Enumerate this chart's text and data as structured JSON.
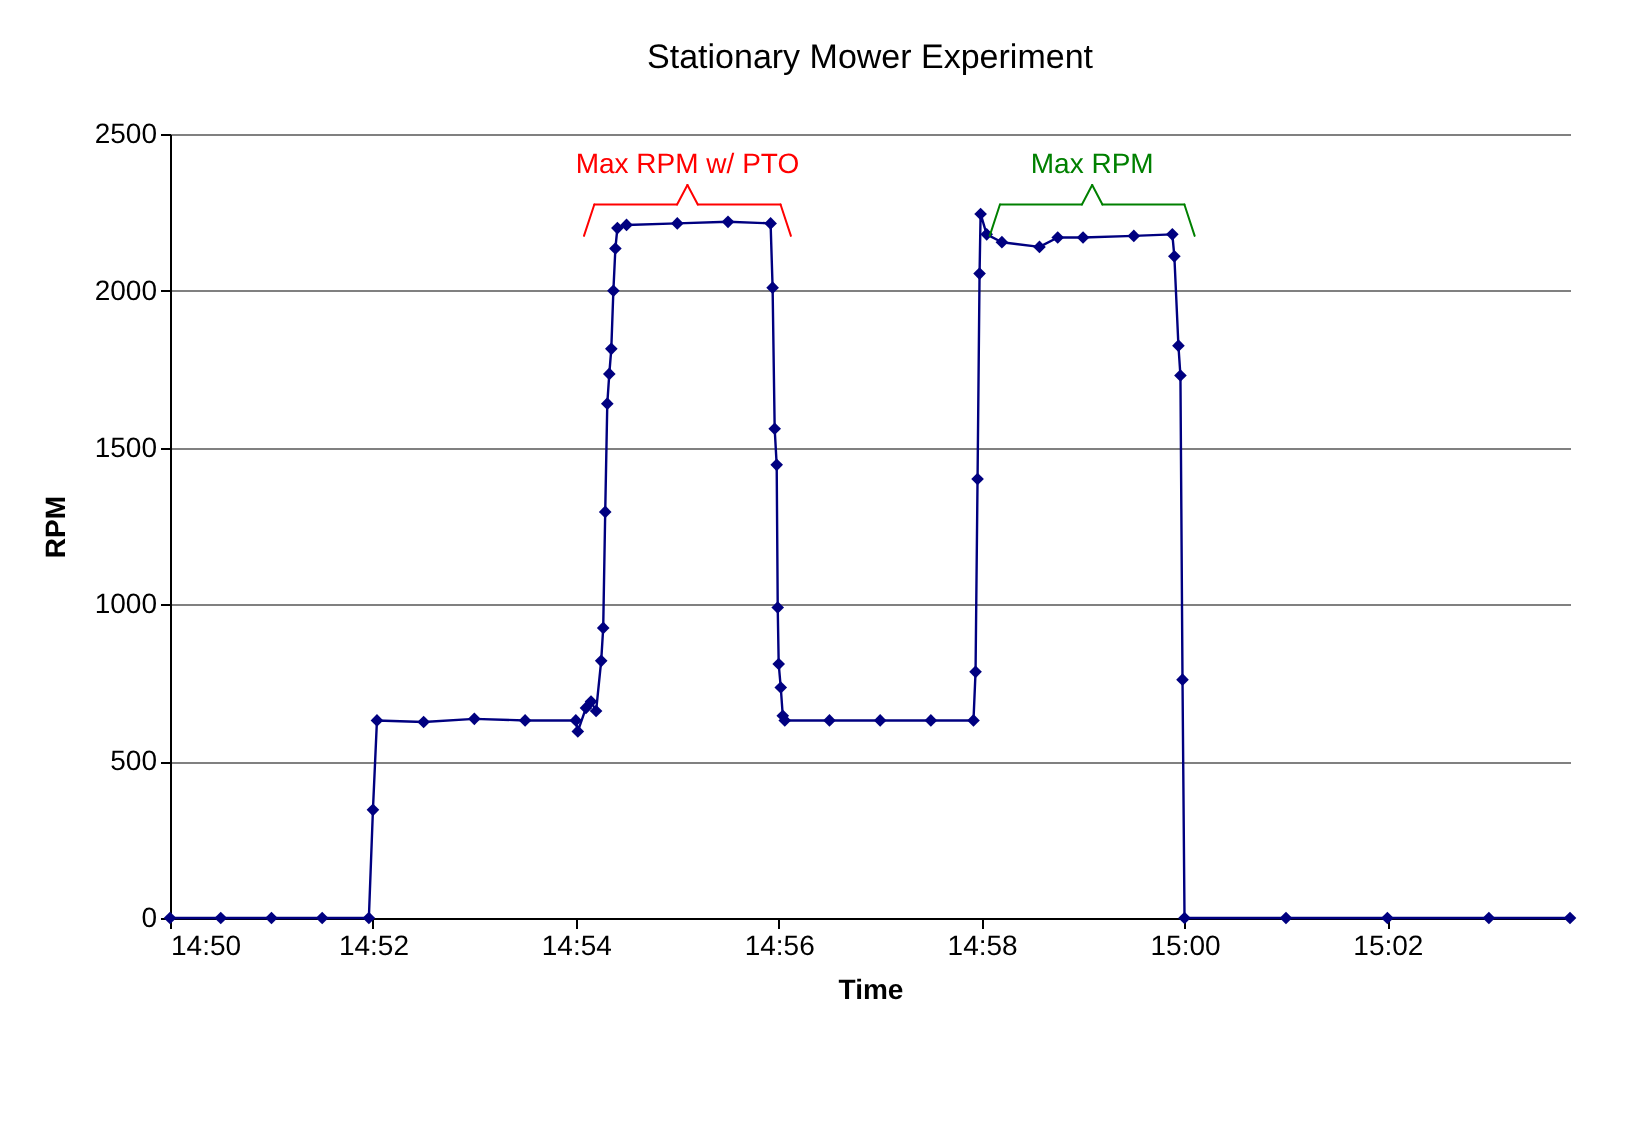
{
  "chart_data": {
    "type": "line",
    "title": "Stationary Mower Experiment",
    "xlabel": "Time",
    "ylabel": "RPM",
    "x": [
      14.83333,
      14.84167,
      14.85,
      14.85833,
      14.866,
      14.86667,
      14.86733,
      14.875,
      14.88333,
      14.89167,
      14.9,
      14.90033,
      14.90167,
      14.9025,
      14.90333,
      14.90417,
      14.9045,
      14.90483,
      14.90517,
      14.9055,
      14.90583,
      14.90617,
      14.9065,
      14.90683,
      14.90833,
      14.91667,
      14.925,
      14.932,
      14.93233,
      14.93267,
      14.933,
      14.93317,
      14.93333,
      14.93367,
      14.934,
      14.93433,
      14.94167,
      14.95,
      14.95833,
      14.96533,
      14.96567,
      14.966,
      14.96633,
      14.9665,
      14.9675,
      14.97,
      14.97617,
      14.97917,
      14.98333,
      14.99167,
      14.998,
      14.99833,
      14.999,
      14.99933,
      14.99967,
      15.0,
      15.01667,
      15.03333,
      15.05,
      15.06333
    ],
    "series": [
      {
        "color": "#000080",
        "values": [
          0,
          0,
          0,
          0,
          0,
          345,
          630,
          625,
          635,
          630,
          630,
          595,
          670,
          690,
          660,
          820,
          925,
          1295,
          1640,
          1735,
          1815,
          2000,
          2135,
          2200,
          2210,
          2215,
          2220,
          2215,
          2010,
          1560,
          1445,
          990,
          810,
          735,
          645,
          630,
          630,
          630,
          630,
          630,
          785,
          1400,
          2055,
          2245,
          2180,
          2155,
          2140,
          2170,
          2170,
          2175,
          2180,
          2110,
          1825,
          1730,
          760,
          0,
          0,
          0,
          0,
          0
        ]
      }
    ],
    "xlim": [
      14.83333,
      15.06333
    ],
    "xticks": [
      {
        "value": 14.83333,
        "label": "14:50"
      },
      {
        "value": 14.86667,
        "label": "14:52"
      },
      {
        "value": 14.9,
        "label": "14:54"
      },
      {
        "value": 14.93333,
        "label": "14:56"
      },
      {
        "value": 14.96667,
        "label": "14:58"
      },
      {
        "value": 15.0,
        "label": "15:00"
      },
      {
        "value": 15.03333,
        "label": "15:02"
      }
    ],
    "ylim": [
      0,
      2500
    ],
    "yticks": [
      0,
      500,
      1000,
      1500,
      2000,
      2500
    ],
    "grid": "y",
    "marker": "diamond",
    "line_style": "solid",
    "annotations": [
      "Max RPM w/ PTO",
      "Max RPM"
    ]
  }
}
